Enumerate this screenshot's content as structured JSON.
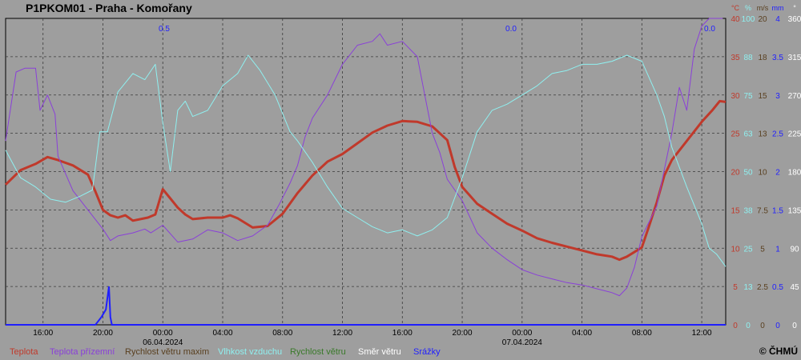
{
  "title": "P1PKOM01 - Praha - Komořany",
  "copyright": "© ČHMÚ",
  "legend": [
    {
      "label": "Teplota",
      "color": "#c0392b"
    },
    {
      "label": "Teplota přízemní",
      "color": "#8a40d8"
    },
    {
      "label": "Rychlost větru maxim",
      "color": "#5a4020"
    },
    {
      "label": "Vlhkost vzduchu",
      "color": "#8ff0f0"
    },
    {
      "label": "Rychlost větru",
      "color": "#3a7a2a"
    },
    {
      "label": "Směr větru",
      "color": "#ffffff"
    },
    {
      "label": "Srážky",
      "color": "#2020ff"
    }
  ],
  "chart_data": {
    "type": "line",
    "x_ticks": [
      "16:00",
      "20:00",
      "00:00",
      "04:00",
      "08:00",
      "12:00",
      "16:00",
      "20:00",
      "00:00",
      "04:00",
      "08:00",
      "12:00"
    ],
    "date_labels": [
      {
        "text": "06.04.2024",
        "at_tick": 2
      },
      {
        "text": "07.04.2024",
        "at_tick": 8
      }
    ],
    "x_range_hours": [
      13.5,
      61.6
    ],
    "x_start": "05.04.2024 13:30",
    "axes": [
      {
        "name": "°C",
        "color": "#c0392b",
        "ticks": [
          "0",
          "5",
          "10",
          "15",
          "20",
          "25",
          "30",
          "35",
          "40"
        ],
        "range": [
          0,
          40
        ]
      },
      {
        "name": "%",
        "color": "#8ff0f0",
        "ticks": [
          "0",
          "13",
          "25",
          "38",
          "50",
          "63",
          "75",
          "88",
          "100"
        ],
        "range": [
          0,
          100
        ]
      },
      {
        "name": "m/s",
        "color": "#5a4020",
        "ticks": [
          "0",
          "2.5",
          "5",
          "7.5",
          "10",
          "13",
          "15",
          "18",
          "20"
        ],
        "range": [
          0,
          20
        ]
      },
      {
        "name": "mm",
        "color": "#2020ff",
        "ticks": [
          "0",
          "0.5",
          "1",
          "1.5",
          "2",
          "2.5",
          "3",
          "3.5",
          "4"
        ],
        "range": [
          0,
          4
        ]
      },
      {
        "name": "°",
        "color": "#ffffff",
        "ticks": [
          "0",
          "45",
          "90",
          "135",
          "180",
          "225",
          "270",
          "315",
          "360"
        ],
        "range": [
          0,
          360
        ]
      }
    ],
    "precip_totals": [
      "0.5",
      "0.0",
      "0.0"
    ],
    "grid": true,
    "series": [
      {
        "name": "Teplota",
        "axis": 0,
        "color": "#c0392b",
        "points": [
          [
            13.5,
            18.3
          ],
          [
            14.5,
            20.2
          ],
          [
            15.5,
            21.0
          ],
          [
            16.3,
            21.9
          ],
          [
            17,
            21.5
          ],
          [
            18,
            20.8
          ],
          [
            19,
            19.6
          ],
          [
            19.5,
            17.4
          ],
          [
            20,
            15.0
          ],
          [
            20.5,
            14.3
          ],
          [
            21,
            14.0
          ],
          [
            21.5,
            14.3
          ],
          [
            22,
            13.6
          ],
          [
            23,
            14.0
          ],
          [
            23.5,
            14.4
          ],
          [
            24,
            17.7
          ],
          [
            24.5,
            16.5
          ],
          [
            25,
            15.3
          ],
          [
            25.5,
            14.4
          ],
          [
            26,
            13.8
          ],
          [
            27,
            14.0
          ],
          [
            28,
            14.0
          ],
          [
            28.5,
            14.3
          ],
          [
            29,
            13.9
          ],
          [
            30,
            12.7
          ],
          [
            31,
            12.9
          ],
          [
            32,
            14.5
          ],
          [
            33,
            17.2
          ],
          [
            34,
            19.5
          ],
          [
            35,
            21.3
          ],
          [
            36,
            22.3
          ],
          [
            37,
            23.7
          ],
          [
            38,
            25.1
          ],
          [
            39,
            26.0
          ],
          [
            40,
            26.6
          ],
          [
            41,
            26.5
          ],
          [
            42,
            25.9
          ],
          [
            43,
            24.1
          ],
          [
            43.5,
            20.6
          ],
          [
            44,
            18.0
          ],
          [
            45,
            15.8
          ],
          [
            46,
            14.5
          ],
          [
            47,
            13.2
          ],
          [
            48,
            12.3
          ],
          [
            49,
            11.3
          ],
          [
            50,
            10.7
          ],
          [
            51,
            10.2
          ],
          [
            52,
            9.7
          ],
          [
            53,
            9.2
          ],
          [
            54,
            8.9
          ],
          [
            54.5,
            8.5
          ],
          [
            55,
            8.9
          ],
          [
            56,
            10.1
          ],
          [
            56.5,
            13.0
          ],
          [
            57,
            16.0
          ],
          [
            57.5,
            19.5
          ],
          [
            58,
            21.5
          ],
          [
            59,
            24.0
          ],
          [
            60,
            26.5
          ],
          [
            60.7,
            28.0
          ],
          [
            61.2,
            29.2
          ],
          [
            61.6,
            29.1
          ]
        ]
      },
      {
        "name": "Teplota přízemní",
        "axis": 0,
        "color": "#8a40d8",
        "points": [
          [
            13.5,
            24.0
          ],
          [
            14.2,
            33.0
          ],
          [
            14.8,
            33.5
          ],
          [
            15.5,
            33.5
          ],
          [
            15.8,
            28.0
          ],
          [
            16.3,
            30.0
          ],
          [
            16.8,
            27.5
          ],
          [
            17,
            22.0
          ],
          [
            18,
            17.5
          ],
          [
            19,
            15.0
          ],
          [
            20,
            12.5
          ],
          [
            20.5,
            11.0
          ],
          [
            21,
            11.6
          ],
          [
            22,
            12.0
          ],
          [
            22.8,
            12.5
          ],
          [
            23.2,
            12.0
          ],
          [
            24,
            13.0
          ],
          [
            25,
            10.8
          ],
          [
            26,
            11.2
          ],
          [
            27,
            12.4
          ],
          [
            28,
            12.0
          ],
          [
            29,
            11.0
          ],
          [
            30,
            11.6
          ],
          [
            31,
            13.0
          ],
          [
            31.8,
            15.8
          ],
          [
            32.5,
            18.5
          ],
          [
            33,
            20.8
          ],
          [
            33.5,
            24.5
          ],
          [
            34,
            27.0
          ],
          [
            35,
            30.0
          ],
          [
            36,
            34.0
          ],
          [
            37,
            36.5
          ],
          [
            38,
            37.0
          ],
          [
            38.5,
            38.0
          ],
          [
            39,
            36.5
          ],
          [
            40,
            37.0
          ],
          [
            41,
            35.0
          ],
          [
            41.5,
            30.0
          ],
          [
            42,
            25.0
          ],
          [
            42.5,
            22.5
          ],
          [
            43,
            19.0
          ],
          [
            44,
            16.2
          ],
          [
            45,
            12.0
          ],
          [
            46,
            10.0
          ],
          [
            47,
            8.5
          ],
          [
            48,
            7.2
          ],
          [
            49,
            6.5
          ],
          [
            50,
            6.0
          ],
          [
            51,
            5.5
          ],
          [
            52,
            5.2
          ],
          [
            53,
            4.7
          ],
          [
            54,
            4.2
          ],
          [
            54.5,
            3.8
          ],
          [
            55,
            4.8
          ],
          [
            55.5,
            7.5
          ],
          [
            56,
            11.5
          ],
          [
            57,
            15.5
          ],
          [
            58,
            25.0
          ],
          [
            58.5,
            31.0
          ],
          [
            59,
            28.0
          ],
          [
            59.5,
            36.0
          ],
          [
            60,
            39.0
          ],
          [
            60.5,
            40.0
          ],
          [
            61,
            40.0
          ],
          [
            61.4,
            40.0
          ]
        ]
      },
      {
        "name": "Vlhkost vzduchu",
        "axis": 1,
        "color": "#8ff0f0",
        "points": [
          [
            13.5,
            57
          ],
          [
            14.5,
            48
          ],
          [
            15.5,
            45
          ],
          [
            16.5,
            41
          ],
          [
            17.5,
            40
          ],
          [
            18.5,
            42
          ],
          [
            19.3,
            44
          ],
          [
            19.8,
            63
          ],
          [
            20.3,
            63
          ],
          [
            21,
            76
          ],
          [
            22,
            82
          ],
          [
            22.8,
            80
          ],
          [
            23.5,
            85
          ],
          [
            24,
            66
          ],
          [
            24.5,
            50
          ],
          [
            25,
            70
          ],
          [
            25.5,
            73
          ],
          [
            26,
            68
          ],
          [
            27,
            70
          ],
          [
            28,
            78
          ],
          [
            29,
            82
          ],
          [
            29.7,
            88
          ],
          [
            30.5,
            83
          ],
          [
            31.5,
            75
          ],
          [
            32.5,
            63
          ],
          [
            33,
            60
          ],
          [
            34,
            53
          ],
          [
            35,
            45
          ],
          [
            36,
            38
          ],
          [
            37,
            35
          ],
          [
            38,
            32
          ],
          [
            39,
            30
          ],
          [
            40,
            31
          ],
          [
            41,
            29
          ],
          [
            42,
            31
          ],
          [
            43,
            35
          ],
          [
            44,
            48
          ],
          [
            45,
            63
          ],
          [
            46,
            70
          ],
          [
            47,
            72
          ],
          [
            48,
            75
          ],
          [
            49,
            78
          ],
          [
            50,
            82
          ],
          [
            51,
            83
          ],
          [
            52,
            85
          ],
          [
            53,
            85
          ],
          [
            54,
            86
          ],
          [
            55,
            88
          ],
          [
            56,
            86
          ],
          [
            57,
            75
          ],
          [
            57.5,
            68
          ],
          [
            58,
            58
          ],
          [
            59,
            45
          ],
          [
            60,
            33
          ],
          [
            60.5,
            25
          ],
          [
            61,
            23
          ],
          [
            61.6,
            19
          ]
        ]
      }
    ],
    "precipitation": [
      [
        13.5,
        0
      ],
      [
        19.5,
        0
      ],
      [
        19.9,
        0.1
      ],
      [
        20.2,
        0.2
      ],
      [
        20.4,
        0.5
      ],
      [
        20.5,
        0.1
      ],
      [
        20.6,
        0
      ],
      [
        61.6,
        0
      ]
    ]
  }
}
